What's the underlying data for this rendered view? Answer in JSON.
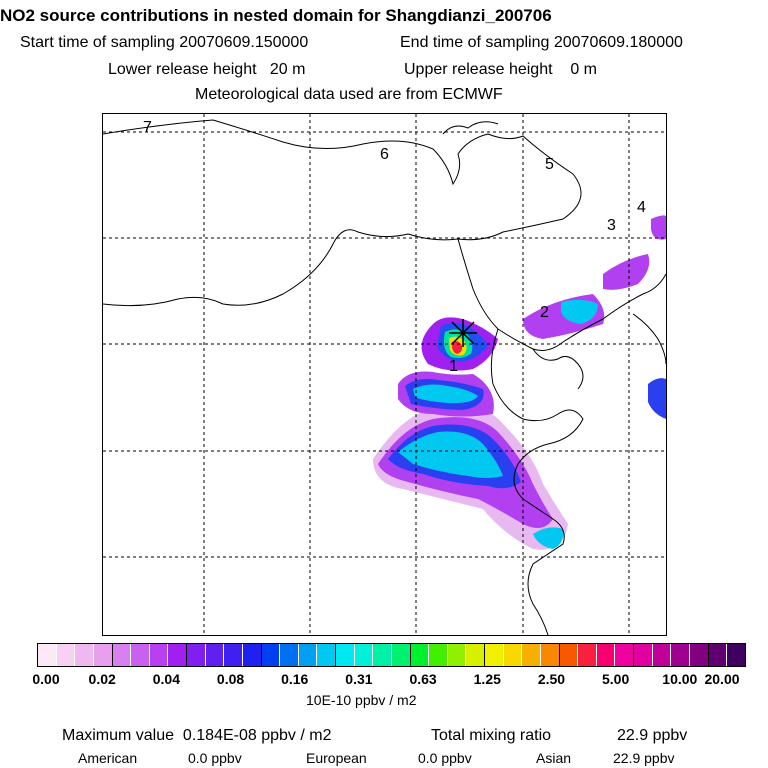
{
  "header": {
    "title": "NO2 source contributions in nested domain for Shangdianzi_200706",
    "start_label": "Start time of sampling",
    "start_value": "20070609.150000",
    "end_label": "End time of sampling",
    "end_value": "20070609.180000",
    "lower_label": "Lower release height",
    "lower_value": "20 m",
    "upper_label": "Upper release height",
    "upper_value": "0 m",
    "met_line": "Meteorological data used are from ECMWF"
  },
  "map": {
    "region_labels": [
      "1",
      "2",
      "3",
      "4",
      "5",
      "6",
      "7"
    ],
    "station_marker": "Shangdianzi"
  },
  "colorbar": {
    "units": "10E-10 ppbv / m2",
    "tick_labels": [
      "0.00",
      "0.02",
      "0.04",
      "0.08",
      "0.16",
      "0.31",
      "0.63",
      "1.25",
      "2.50",
      "5.00",
      "10.00",
      "20.00"
    ],
    "colors": [
      "#fde8f8",
      "#f8d0f4",
      "#f0b8f0",
      "#e8a0ee",
      "#d880f0",
      "#c860f0",
      "#b840f0",
      "#a020f0",
      "#8020f0",
      "#6020f0",
      "#4020f0",
      "#2020f0",
      "#0040f0",
      "#0070f0",
      "#00a0f0",
      "#00c8f0",
      "#00e8f0",
      "#00f0d8",
      "#00f0a8",
      "#00f070",
      "#00f030",
      "#40f000",
      "#90f000",
      "#d8f000",
      "#f0f000",
      "#f8d800",
      "#f8b000",
      "#f88800",
      "#f85800",
      "#f82040",
      "#f80070",
      "#f000a0",
      "#e000a0",
      "#c00098",
      "#a00090",
      "#800080",
      "#600070",
      "#400060"
    ]
  },
  "footer": {
    "max_label": "Maximum value",
    "max_value": "0.184E-08 ppbv / m2",
    "total_label": "Total mixing ratio",
    "total_value": "22.9 ppbv",
    "american_label": "American",
    "american_value": "0.0 ppbv",
    "european_label": "European",
    "european_value": "0.0 ppbv",
    "asian_label": "Asian",
    "asian_value": "22.9 ppbv"
  }
}
